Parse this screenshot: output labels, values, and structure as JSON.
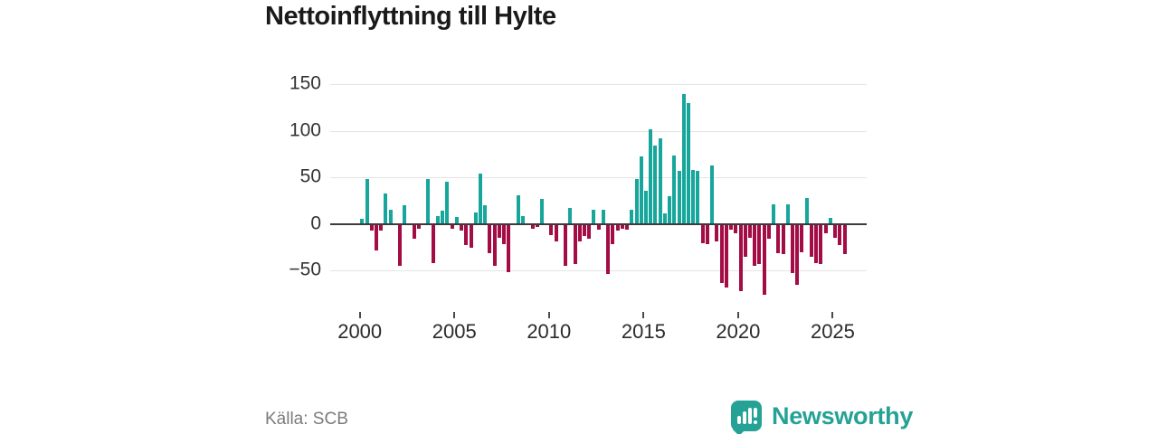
{
  "title": "Nettoinflyttning till Hylte",
  "source": "Källa: SCB",
  "logo": {
    "text": "Newsworthy",
    "color": "#25a295",
    "icon": "bar-chart-speech-bubble"
  },
  "colors": {
    "positive": "#17a69b",
    "negative": "#a30c44",
    "grid": "#e4e4e4",
    "zero_axis": "#3b3b3b",
    "title_text": "#1a1a1a",
    "tick_text": "#333333",
    "source_text": "#7b7b7b"
  },
  "chart_data": {
    "type": "bar",
    "title": "Nettoinflyttning till Hylte",
    "xlabel": "",
    "ylabel": "",
    "x_unit": "quarter",
    "start_quarter": "2000-Q1",
    "end_quarter": "2025-Q3",
    "x_tick_labels": [
      "2000",
      "2005",
      "2010",
      "2015",
      "2020",
      "2025"
    ],
    "x_tick_years": [
      2000,
      2005,
      2010,
      2015,
      2020,
      2025
    ],
    "y_tick_values": [
      150,
      100,
      50,
      0,
      -50
    ],
    "ylim": [
      -90,
      160
    ],
    "grid": true,
    "legend": "none",
    "values": [
      5,
      48,
      -8,
      -29,
      -8,
      33,
      15,
      0,
      -46,
      20,
      0,
      -17,
      -6,
      0,
      48,
      -43,
      8,
      14,
      45,
      -6,
      7,
      -8,
      -23,
      -26,
      12,
      54,
      20,
      -32,
      -46,
      -16,
      -22,
      -53,
      0,
      31,
      8,
      0,
      -6,
      -4,
      27,
      0,
      -13,
      -19,
      0,
      -46,
      17,
      -44,
      -19,
      -14,
      -17,
      15,
      -7,
      15,
      -55,
      -22,
      -8,
      -6,
      -7,
      15,
      48,
      73,
      36,
      102,
      84,
      92,
      11,
      30,
      74,
      57,
      140,
      130,
      58,
      57,
      -21,
      -22,
      63,
      -19,
      -64,
      -69,
      -7,
      -11,
      -73,
      -36,
      -16,
      -46,
      -44,
      -77,
      -17,
      21,
      -32,
      -33,
      21,
      -54,
      -66,
      -31,
      28,
      -36,
      -43,
      -44,
      -11,
      6,
      -16,
      -23,
      -33
    ]
  }
}
